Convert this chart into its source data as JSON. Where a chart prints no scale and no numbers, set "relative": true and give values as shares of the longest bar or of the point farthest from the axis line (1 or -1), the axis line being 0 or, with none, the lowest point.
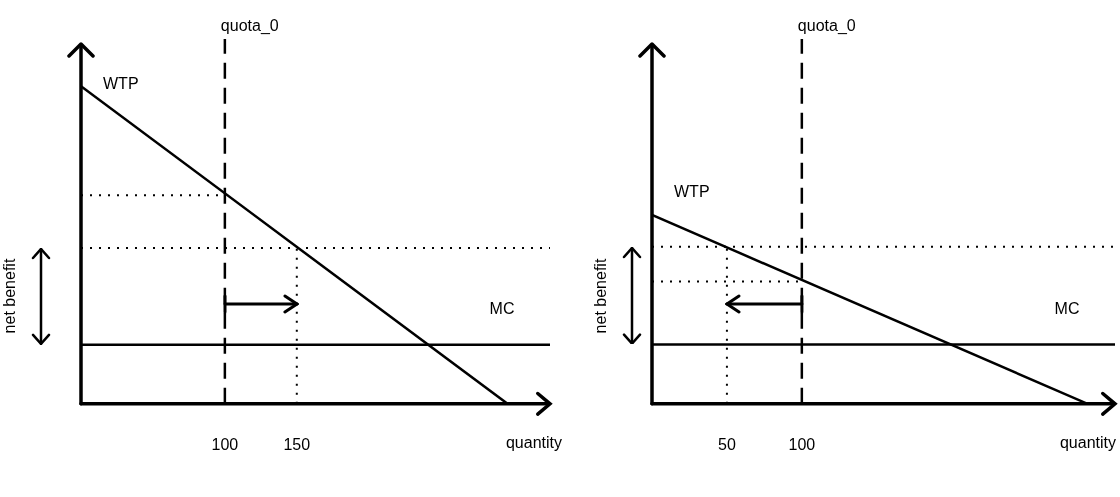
{
  "chart_data": [
    {
      "type": "line",
      "relative": true,
      "xlabel": "quantity",
      "ylabel": "net benefit",
      "xlim": [
        0,
        326
      ],
      "xticks": [
        100,
        150
      ],
      "series": [
        {
          "name": "WTP",
          "color": "#000000",
          "x": [
            0,
            296.5
          ],
          "values": [
            1,
            0
          ]
        },
        {
          "name": "MC",
          "color": "#000000",
          "x": [
            0,
            326
          ],
          "values": [
            0.186,
            0.186
          ]
        },
        {
          "color": "#000000",
          "x": [
            0,
            100
          ],
          "values": [
            0.657,
            0.657
          ],
          "line_style": "dotted"
        },
        {
          "color": "#000000",
          "x": [
            150,
            150
          ],
          "values": [
            0,
            0.491
          ],
          "line_style": "dotted"
        }
      ],
      "ref_lines": [
        {
          "axis": "x",
          "value": 100,
          "label": "quota_0",
          "line_style": "dashed"
        },
        {
          "axis": "y",
          "value": 0.491,
          "line_style": "dotted"
        }
      ]
    },
    {
      "type": "line",
      "relative": true,
      "xlabel": "quantity",
      "ylabel": "net benefit",
      "xlim": [
        0,
        309
      ],
      "xticks": [
        50,
        100
      ],
      "series": [
        {
          "name": "WTP",
          "color": "#000000",
          "x": [
            0,
            290.7
          ],
          "values": [
            1,
            0
          ]
        },
        {
          "name": "MC",
          "color": "#000000",
          "x": [
            0,
            309
          ],
          "values": [
            0.314,
            0.314
          ]
        },
        {
          "color": "#000000",
          "x": [
            0,
            100
          ],
          "values": [
            0.647,
            0.647
          ],
          "line_style": "dotted"
        },
        {
          "color": "#000000",
          "x": [
            50,
            50
          ],
          "values": [
            0,
            0.831
          ],
          "line_style": "dotted"
        }
      ],
      "ref_lines": [
        {
          "axis": "x",
          "value": 100,
          "label": "quota_0",
          "line_style": "dashed"
        },
        {
          "axis": "y",
          "value": 0.831,
          "line_style": "dotted"
        }
      ]
    }
  ]
}
